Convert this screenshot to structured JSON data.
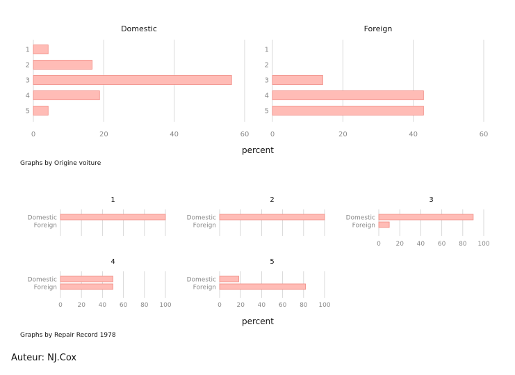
{
  "colors": {
    "bar_fill": "#ffbcb6",
    "bar_stroke": "#f08a82",
    "grid": "#d9d9d9",
    "tick_text": "#8a8a8a",
    "title_text": "#111111"
  },
  "chart_data": [
    {
      "type": "bar",
      "orientation": "horizontal",
      "group_by": "Origine voiture",
      "panels": [
        {
          "title": "Domestic",
          "categories": [
            "1",
            "2",
            "3",
            "4",
            "5"
          ],
          "values": [
            4.2,
            16.7,
            56.3,
            18.8,
            4.2
          ]
        },
        {
          "title": "Foreign",
          "categories": [
            "1",
            "2",
            "3",
            "4",
            "5"
          ],
          "values": [
            0,
            0,
            14.3,
            42.9,
            42.9
          ]
        }
      ],
      "xlabel": "percent",
      "xlim": [
        0,
        60
      ],
      "xticks": [
        0,
        20,
        40,
        60
      ],
      "grid": true,
      "note": "Graphs by Origine voiture"
    },
    {
      "type": "bar",
      "orientation": "horizontal",
      "group_by": "Repair Record 1978",
      "panels": [
        {
          "title": "1",
          "categories": [
            "Domestic",
            "Foreign"
          ],
          "values": [
            100,
            0
          ]
        },
        {
          "title": "2",
          "categories": [
            "Domestic",
            "Foreign"
          ],
          "values": [
            100,
            0
          ]
        },
        {
          "title": "3",
          "categories": [
            "Domestic",
            "Foreign"
          ],
          "values": [
            90,
            10
          ]
        },
        {
          "title": "4",
          "categories": [
            "Domestic",
            "Foreign"
          ],
          "values": [
            50,
            50
          ]
        },
        {
          "title": "5",
          "categories": [
            "Domestic",
            "Foreign"
          ],
          "values": [
            18.2,
            81.8
          ]
        }
      ],
      "xlabel": "percent",
      "xlim": [
        0,
        100
      ],
      "xticks": [
        0,
        20,
        40,
        60,
        80,
        100
      ],
      "grid": true,
      "note": "Graphs by Repair Record 1978"
    }
  ],
  "author": "Auteur: NJ.Cox"
}
